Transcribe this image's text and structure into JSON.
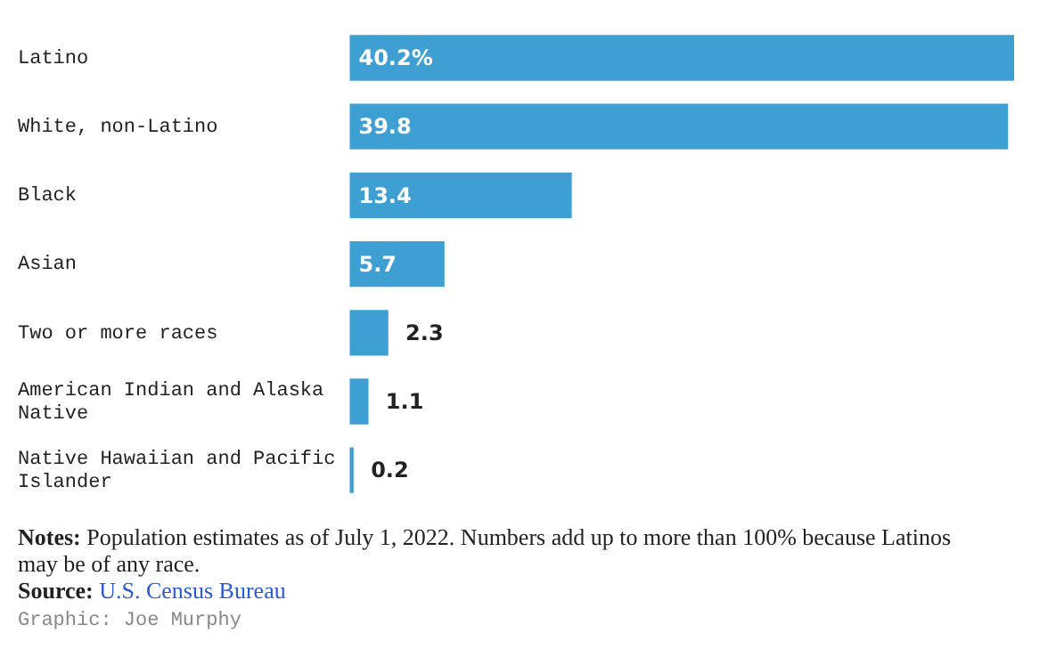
{
  "chart_data": {
    "type": "bar",
    "orientation": "horizontal",
    "categories": [
      "Latino",
      "White, non-Latino",
      "Black",
      "Asian",
      "Two or more races",
      "American Indian and Alaska Native",
      "Native Hawaiian and Pacific Islander"
    ],
    "values": [
      40.2,
      39.8,
      13.4,
      5.7,
      2.3,
      1.1,
      0.2
    ],
    "value_labels": [
      "40.2%",
      "39.8",
      "13.4",
      "5.7",
      "2.3",
      "1.1",
      "0.2"
    ],
    "color": "#3e9fd3",
    "legend": false,
    "annotations": [
      "Notes: Population estimates as of July 1, 2022. Numbers add up to more than 100% because Latinos may be of any race.",
      "Source: U.S. Census Bureau",
      "Graphic: Joe Murphy"
    ]
  }
}
